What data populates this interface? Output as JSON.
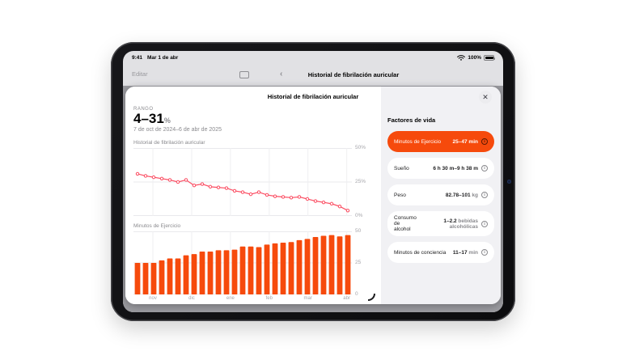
{
  "status_bar": {
    "time": "9:41",
    "date": "Mar 1 de abr",
    "battery_label": "100%"
  },
  "nav_bar": {
    "edit_label": "Editar",
    "back_icon": "‹",
    "title": "Historial de fibrilación auricular"
  },
  "modal": {
    "title": "Historial de fibrilación auricular",
    "close_icon": "✕",
    "range_label": "RANGO",
    "range_value": "4–31",
    "range_unit": "%",
    "date_range": "7 de oct de 2024–6 de abr de 2025"
  },
  "chart_data": [
    {
      "type": "line",
      "title": "Historial de fibrilación auricular",
      "values": [
        31,
        29.5,
        28.5,
        27.5,
        26.5,
        25,
        26.5,
        22.5,
        23.5,
        21.5,
        21,
        20.5,
        18.5,
        17.5,
        16,
        17.5,
        15.5,
        14.5,
        14,
        13.5,
        14,
        12.5,
        11,
        10,
        9,
        7,
        4
      ],
      "ylim": [
        0,
        50
      ],
      "ytick_labels": [
        "50%",
        "25%",
        "0%"
      ],
      "color": "#fb4d62",
      "grid": true
    },
    {
      "type": "bar",
      "title": "Minutos de Ejercicio",
      "values": [
        25,
        25,
        25,
        27,
        28.5,
        28.5,
        31,
        32,
        34,
        34,
        35,
        35,
        35.5,
        38,
        38,
        37.5,
        39.5,
        40.5,
        41,
        41.5,
        43,
        44,
        45.5,
        46.5,
        47,
        46,
        47
      ],
      "ylim": [
        0,
        50
      ],
      "ytick_labels": [
        "50",
        "25",
        "0"
      ],
      "xtick_labels": [
        "nov",
        "dic",
        "ene",
        "feb",
        "mar",
        "abr"
      ],
      "color": "#f64a0c",
      "grid": true
    }
  ],
  "sidebar": {
    "title": "Factores de vida",
    "items": [
      {
        "label": "Minutos de Ejercicio",
        "value": "25–47",
        "unit": " min",
        "selected": true
      },
      {
        "label": "Sueño",
        "value": "6 h 30 m–9 h 38 m",
        "unit": "",
        "selected": false
      },
      {
        "label": "Peso",
        "value": "82.78–101",
        "unit": " kg",
        "selected": false
      },
      {
        "label": "Consumo de alcohol",
        "value": "1–2.2",
        "unit": " bebidas alcohólicas",
        "selected": false
      },
      {
        "label": "Minutos de conciencia",
        "value": "11–17",
        "unit": " min",
        "selected": false
      }
    ]
  },
  "colors": {
    "accent_orange": "#f64a0c",
    "line_red": "#fb4d62",
    "chrome_gray": "#e1e1e4",
    "backdrop_gray": "#9b9ba0"
  }
}
